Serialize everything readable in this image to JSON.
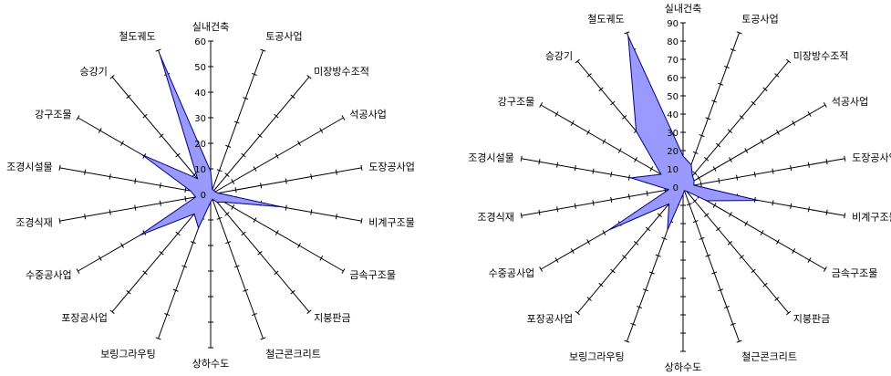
{
  "chart_data": [
    {
      "type": "radar",
      "title": "",
      "axes": [
        "실내건축",
        "토공사업",
        "미장방수조적",
        "석공사업",
        "도장공사업",
        "비계구조물",
        "금속구조물",
        "지붕판금",
        "철근콘크리트",
        "상하수도",
        "보링그라우팅",
        "포장공사업",
        "수중공사업",
        "조경식재",
        "조경시설물",
        "강구조물",
        "승강기",
        "철도궤도"
      ],
      "rlim": [
        0,
        60
      ],
      "ticks": [
        0,
        10,
        20,
        30,
        40,
        50,
        60
      ],
      "series": [
        {
          "name": "",
          "values": [
            9,
            2,
            2,
            2,
            3,
            28,
            6,
            4,
            2,
            3,
            14,
            10,
            32,
            6,
            8,
            31,
            8,
            58
          ]
        }
      ],
      "fill_color": "#9999ff",
      "line_color": "#000080"
    },
    {
      "type": "radar",
      "title": "",
      "axes": [
        "실내건축",
        "토공사업",
        "미장방수조적",
        "석공사업",
        "도장공사업",
        "비계구조물",
        "금속구조물",
        "지붕판금",
        "철근콘크리트",
        "상하수도",
        "보링그라우팅",
        "포장공사업",
        "수중공사업",
        "조경식재",
        "조경시설물",
        "강구조물",
        "승강기",
        "철도궤도"
      ],
      "rlim": [
        0,
        90
      ],
      "ticks": [
        0,
        10,
        20,
        30,
        40,
        50,
        60,
        70,
        80,
        90
      ],
      "series": [
        {
          "name": "",
          "values": [
            17,
            13,
            8,
            7,
            6,
            42,
            15,
            3,
            2,
            4,
            25,
            12,
            47,
            8,
            29,
            14,
            40,
            88
          ]
        }
      ],
      "fill_color": "#9999ff",
      "line_color": "#000080"
    }
  ]
}
